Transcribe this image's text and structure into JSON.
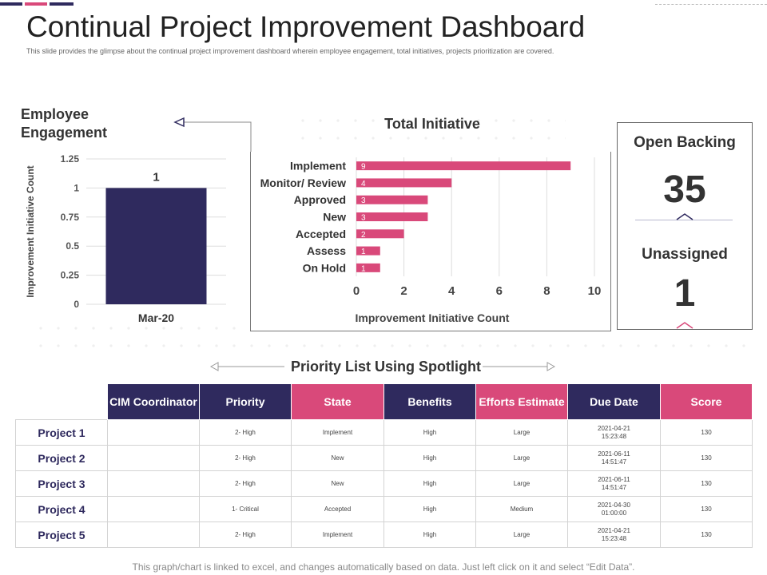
{
  "header": {
    "title": "Continual Project Improvement Dashboard",
    "subtitle": "This slide provides the glimpse about the continual project improvement dashboard wherein employee engagement, total initiatives, projects prioritization are covered.",
    "accent_colors": [
      "#2f2a5e",
      "#d9497a",
      "#2f2a5e"
    ]
  },
  "engagement": {
    "title": "Employee Engagement",
    "arrow_icon": "arrow-left-icon"
  },
  "chart_data": [
    {
      "type": "bar",
      "orientation": "vertical",
      "categories": [
        "Mar-20"
      ],
      "values": [
        1
      ],
      "data_labels": [
        "1"
      ],
      "ylabel": "Improvement Initiative Count",
      "ylim": [
        0,
        1.25
      ],
      "yticks": [
        "0",
        "0.25",
        "0.5",
        "0.75",
        "1",
        "1.25"
      ],
      "grid": true,
      "color": "#2f2a5e"
    },
    {
      "type": "bar",
      "orientation": "horizontal",
      "title": "Total Initiative",
      "categories": [
        "Implement",
        "Monitor/ Review",
        "Approved",
        "New",
        "Accepted",
        "Assess",
        "On Hold"
      ],
      "values": [
        9,
        4,
        3,
        3,
        2,
        1,
        1
      ],
      "data_labels": [
        "9",
        "4",
        "3",
        "3",
        "2",
        "1",
        "1"
      ],
      "xlabel": "Improvement Initiative Count",
      "xlim": [
        0,
        10
      ],
      "xticks": [
        "0",
        "2",
        "4",
        "6",
        "8",
        "10"
      ],
      "grid": true,
      "color": "#d9497a"
    }
  ],
  "kpis": {
    "open_backing": {
      "label": "Open Backing",
      "value": "35"
    },
    "unassigned": {
      "label": "Unassigned",
      "value": "1"
    }
  },
  "priority": {
    "title": "Priority List Using Spotlight",
    "columns": [
      "CIM Coordinator",
      "Priority",
      "State",
      "Benefits",
      "Efforts Estimate",
      "Due Date",
      "Score"
    ],
    "column_colors": [
      "#2f2a5e",
      "#2f2a5e",
      "#d9497a",
      "#2f2a5e",
      "#d9497a",
      "#2f2a5e",
      "#d9497a"
    ],
    "rows": [
      {
        "name": "Project 1",
        "coordinator": "",
        "priority": "2- High",
        "state": "Implement",
        "benefits": "High",
        "efforts": "Large",
        "due_date": "2021-04-21",
        "due_time": "15:23:48",
        "score": "130"
      },
      {
        "name": "Project 2",
        "coordinator": "",
        "priority": "2- High",
        "state": "New",
        "benefits": "High",
        "efforts": "Large",
        "due_date": "2021-06-11",
        "due_time": "14:51:47",
        "score": "130"
      },
      {
        "name": "Project 3",
        "coordinator": "",
        "priority": "2- High",
        "state": "New",
        "benefits": "High",
        "efforts": "Large",
        "due_date": "2021-06-11",
        "due_time": "14:51:47",
        "score": "130"
      },
      {
        "name": "Project 4",
        "coordinator": "",
        "priority": "1- Critical",
        "state": "Accepted",
        "benefits": "High",
        "efforts": "Medium",
        "due_date": "2021-04-30",
        "due_time": "01:00:00",
        "score": "130"
      },
      {
        "name": "Project 5",
        "coordinator": "",
        "priority": "2- High",
        "state": "Implement",
        "benefits": "High",
        "efforts": "Large",
        "due_date": "2021-04-21",
        "due_time": "15:23:48",
        "score": "130"
      }
    ]
  },
  "footer": {
    "note": "This graph/chart is linked to excel, and changes automatically based on data. Just left click on it and select “Edit Data”."
  }
}
